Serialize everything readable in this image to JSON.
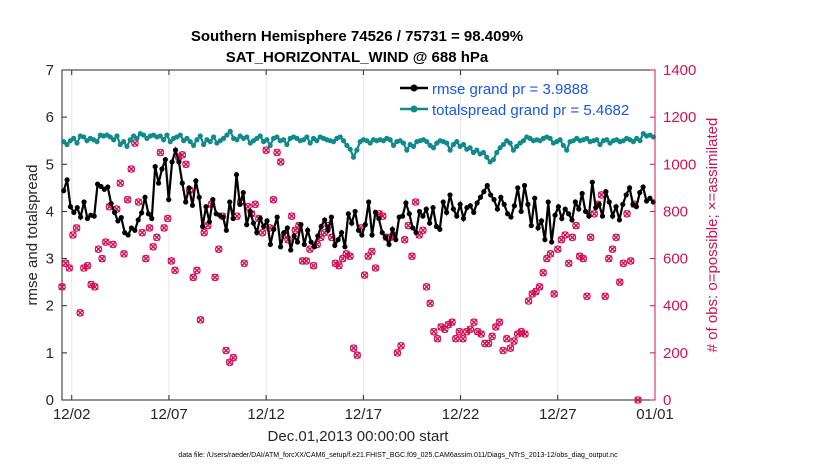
{
  "chart_data": {
    "type": "line",
    "title": "Southern Hemisphere 74526 / 75731 = 98.409%",
    "subtitle": "SAT_HORIZONTAL_WIND @ 688 hPa",
    "xlabel": "Dec.01,2013 00:00:00 start",
    "ylabel": "rmse and totalspread",
    "ylabel_right": "# of obs: o=possible; ×=assimilated",
    "xlim": [
      0.5,
      31
    ],
    "ylim": [
      0,
      7
    ],
    "ylim_right": [
      0,
      1400
    ],
    "x_ticks": [
      1,
      6,
      11,
      16,
      21,
      26,
      31
    ],
    "x_tick_labels": [
      "12/02",
      "12/07",
      "12/12",
      "12/17",
      "12/22",
      "12/27",
      "01/01"
    ],
    "y_ticks": [
      0,
      1,
      2,
      3,
      4,
      5,
      6,
      7
    ],
    "y_ticks_right": [
      0,
      200,
      400,
      600,
      800,
      1000,
      1200,
      1400
    ],
    "legend_position": "top-right",
    "footnote": "data file: /Users/raeder/DAI/ATM_forcXX/CAM6_setup/f.e21.FHIST_BGC.f09_025.CAM6assim.011/Diags_NTrS_2013-12/obs_diag_output.nc",
    "series": [
      {
        "name": "rmse grand pr = 3.9888",
        "axis": "left",
        "color": "#000000",
        "values": [
          4.44,
          4.67,
          4.1,
          3.98,
          4.08,
          3.88,
          4.2,
          3.85,
          3.92,
          3.9,
          4.58,
          4.53,
          4.47,
          4.52,
          4.17,
          3.98,
          3.8,
          3.87,
          3.55,
          3.5,
          3.65,
          3.6,
          3.82,
          3.97,
          4.3,
          3.95,
          3.85,
          4.95,
          4.6,
          4.9,
          5.1,
          4.25,
          5.05,
          5.3,
          5.05,
          4.6,
          4.2,
          4.5,
          4.13,
          4.65,
          4.3,
          3.68,
          4.1,
          3.78,
          4.25,
          3.95,
          3.92,
          3.88,
          3.6,
          4.2,
          3.85,
          4.78,
          4.15,
          4.4,
          3.72,
          4.0,
          3.75,
          3.55,
          3.85,
          3.68,
          3.8,
          3.3,
          3.62,
          3.88,
          3.25,
          3.55,
          3.65,
          3.18,
          3.48,
          3.35,
          3.72,
          3.3,
          3.6,
          3.35,
          3.25,
          3.48,
          3.68,
          3.82,
          3.6,
          3.88,
          3.28,
          3.4,
          3.55,
          3.25,
          3.95,
          3.75,
          4.0,
          3.6,
          3.5,
          3.72,
          4.2,
          3.5,
          3.98,
          3.85,
          3.55,
          3.45,
          3.3,
          3.62,
          3.4,
          3.88,
          3.9,
          4.18,
          3.95,
          3.65,
          3.55,
          4.0,
          3.9,
          4.05,
          3.75,
          4.08,
          3.68,
          3.62,
          4.2,
          3.98,
          4.35,
          4.05,
          3.9,
          4.15,
          3.85,
          4.08,
          4.12,
          3.98,
          4.18,
          4.3,
          4.42,
          4.55,
          4.35,
          4.25,
          4.05,
          4.3,
          4.15,
          3.95,
          3.88,
          4.12,
          4.5,
          4.0,
          4.55,
          4.15,
          3.7,
          4.28,
          3.65,
          3.8,
          3.4,
          4.2,
          3.35,
          3.92,
          4.1,
          3.85,
          4.05,
          3.95,
          3.82,
          4.2,
          4.05,
          4.38,
          4.0,
          3.9,
          4.62,
          4.08,
          4.15,
          3.9,
          4.42,
          4.2,
          3.9,
          4.1,
          3.82,
          4.15,
          4.35,
          4.5,
          4.15,
          4.1,
          4.4,
          4.52,
          4.22,
          4.28,
          4.2
        ]
      },
      {
        "name": "totalspread grand pr = 5.4682",
        "axis": "left",
        "color": "#118a8a",
        "values": [
          5.48,
          5.42,
          5.5,
          5.55,
          5.45,
          5.6,
          5.58,
          5.5,
          5.55,
          5.52,
          5.48,
          5.62,
          5.6,
          5.62,
          5.58,
          5.52,
          5.6,
          5.42,
          5.48,
          5.38,
          5.52,
          5.6,
          5.55,
          5.65,
          5.62,
          5.55,
          5.6,
          5.62,
          5.58,
          5.6,
          5.52,
          5.62,
          5.48,
          5.55,
          5.58,
          5.62,
          5.5,
          5.55,
          5.48,
          5.4,
          5.52,
          5.6,
          5.42,
          5.52,
          5.48,
          5.58,
          5.45,
          5.5,
          5.55,
          5.62,
          5.7,
          5.55,
          5.52,
          5.6,
          5.55,
          5.58,
          5.45,
          5.5,
          5.55,
          5.6,
          5.48,
          5.52,
          5.4,
          5.55,
          5.58,
          5.5,
          5.52,
          5.42,
          5.55,
          5.58,
          5.55,
          5.5,
          5.52,
          5.58,
          5.45,
          5.55,
          5.5,
          5.58,
          5.55,
          5.52,
          5.5,
          5.48,
          5.55,
          5.58,
          5.5,
          5.4,
          5.32,
          5.15,
          5.3,
          5.48,
          5.52,
          5.5,
          5.45,
          5.52,
          5.5,
          5.52,
          5.5,
          5.55,
          5.52,
          5.4,
          5.48,
          5.5,
          5.45,
          5.3,
          5.42,
          5.38,
          5.48,
          5.5,
          5.52,
          5.48,
          5.4,
          5.35,
          5.45,
          5.5,
          5.48,
          5.45,
          5.3,
          5.42,
          5.48,
          5.38,
          5.42,
          5.32,
          5.35,
          5.25,
          5.3,
          5.22,
          5.25,
          5.15,
          5.05,
          5.1,
          5.25,
          5.35,
          5.42,
          5.5,
          5.45,
          5.3,
          5.38,
          5.45,
          5.5,
          5.58,
          5.55,
          5.5,
          5.52,
          5.5,
          5.55,
          5.58,
          5.55,
          5.45,
          5.48,
          5.52,
          5.4,
          5.3,
          5.48,
          5.5,
          5.55,
          5.5,
          5.52,
          5.55,
          5.48,
          5.5,
          5.52,
          5.42,
          5.5,
          5.52,
          5.45,
          5.5,
          5.52,
          5.48,
          5.5,
          5.55,
          5.52,
          5.48,
          5.55,
          5.5,
          5.65,
          5.6,
          5.62,
          5.58
        ]
      },
      {
        "name": "possible",
        "axis": "right",
        "marker": "o",
        "color": "#d11157",
        "values": [
          480,
          580,
          560,
          700,
          730,
          370,
          560,
          570,
          490,
          480,
          640,
          600,
          670,
          820,
          660,
          810,
          920,
          620,
          850,
          980,
          1090,
          840,
          710,
          600,
          730,
          650,
          690,
          1050,
          730,
          770,
          590,
          550,
          1030,
          1040,
          1000,
          890,
          520,
          550,
          340,
          710,
          740,
          830,
          520,
          640,
          780,
          210,
          160,
          180,
          780,
          840,
          580,
          820,
          790,
          830,
          770,
          710,
          1060,
          730,
          850,
          1050,
          1010,
          700,
          680,
          780,
          720,
          740,
          590,
          590,
          640,
          570,
          660,
          690,
          710,
          740,
          690,
          580,
          570,
          600,
          620,
          610,
          220,
          190,
          730,
          530,
          610,
          630,
          560,
          790,
          780,
          690,
          690,
          700,
          200,
          230,
          680,
          740,
          610,
          840,
          700,
          720,
          480,
          410,
          290,
          260,
          310,
          300,
          320,
          330,
          260,
          290,
          260,
          290,
          300,
          330,
          290,
          280,
          240,
          240,
          270,
          310,
          330,
          210,
          260,
          220,
          250,
          280,
          290,
          280,
          420,
          450,
          460,
          480,
          540,
          600,
          620,
          450,
          640,
          680,
          700,
          580,
          690,
          740,
          610,
          600,
          440,
          690,
          790,
          830,
          870,
          440,
          600,
          640,
          690,
          500,
          580,
          790,
          590,
          830,
          0
        ],
        "xstart": 0.5,
        "xstep": 0.1875
      }
    ]
  }
}
